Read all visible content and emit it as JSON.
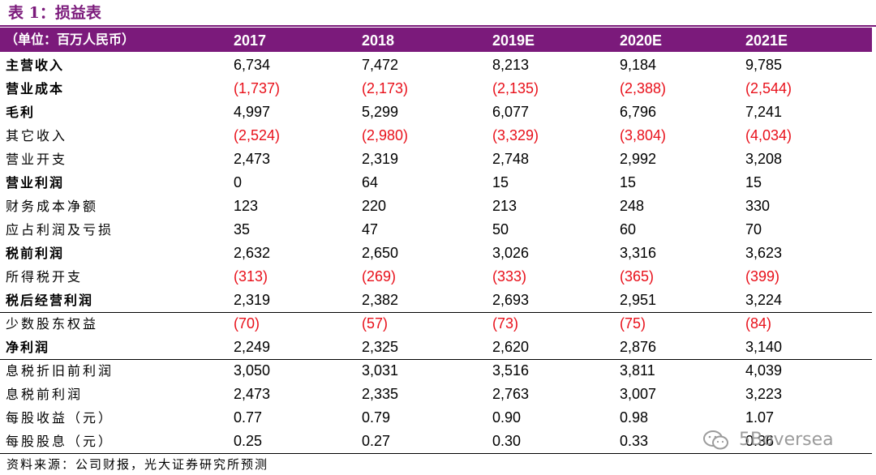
{
  "title": "表 1：损益表",
  "header": {
    "unit_label": "（单位：百万人民币）",
    "columns": [
      "2017",
      "2018",
      "2019E",
      "2020E",
      "2021E"
    ]
  },
  "rows": [
    {
      "label": "主营收入",
      "bold": true,
      "values": [
        "6,734",
        "7,472",
        "8,213",
        "9,184",
        "9,785"
      ]
    },
    {
      "label": "营业成本",
      "bold": true,
      "values": [
        "(1,737)",
        "(2,173)",
        "(2,135)",
        "(2,388)",
        "(2,544)"
      ]
    },
    {
      "label": "毛利",
      "bold": true,
      "values": [
        "4,997",
        "5,299",
        "6,077",
        "6,796",
        "7,241"
      ]
    },
    {
      "label": "其它收入",
      "bold": false,
      "values": [
        "(2,524)",
        "(2,980)",
        "(3,329)",
        "(3,804)",
        "(4,034)"
      ]
    },
    {
      "label": "营业开支",
      "bold": false,
      "values": [
        "2,473",
        "2,319",
        "2,748",
        "2,992",
        "3,208"
      ]
    },
    {
      "label": "营业利润",
      "bold": true,
      "values": [
        "0",
        "64",
        "15",
        "15",
        "15"
      ]
    },
    {
      "label": "财务成本净额",
      "bold": false,
      "values": [
        "123",
        "220",
        "213",
        "248",
        "330"
      ]
    },
    {
      "label": "应占利润及亏损",
      "bold": false,
      "values": [
        "35",
        "47",
        "50",
        "60",
        "70"
      ]
    },
    {
      "label": "税前利润",
      "bold": true,
      "values": [
        "2,632",
        "2,650",
        "3,026",
        "3,316",
        "3,623"
      ]
    },
    {
      "label": "所得税开支",
      "bold": false,
      "values": [
        "(313)",
        "(269)",
        "(333)",
        "(365)",
        "(399)"
      ]
    },
    {
      "label": "税后经营利润",
      "bold": true,
      "values": [
        "2,319",
        "2,382",
        "2,693",
        "2,951",
        "3,224"
      ]
    },
    {
      "label": "少数股东权益",
      "bold": false,
      "values": [
        "(70)",
        "(57)",
        "(73)",
        "(75)",
        "(84)"
      ]
    },
    {
      "label": "净利润",
      "bold": true,
      "values": [
        "2,249",
        "2,325",
        "2,620",
        "2,876",
        "3,140"
      ]
    },
    {
      "label": "息税折旧前利润",
      "bold": false,
      "values": [
        "3,050",
        "3,031",
        "3,516",
        "3,811",
        "4,039"
      ]
    },
    {
      "label": "息税前利润",
      "bold": false,
      "values": [
        "2,473",
        "2,335",
        "2,763",
        "3,007",
        "3,223"
      ]
    },
    {
      "label": "每股收益（元）",
      "bold": false,
      "values": [
        "0.77",
        "0.79",
        "0.90",
        "0.98",
        "1.07"
      ]
    },
    {
      "label": "每股股息（元）",
      "bold": false,
      "values": [
        "0.25",
        "0.27",
        "0.30",
        "0.33",
        "0.36"
      ]
    }
  ],
  "source": "资料来源：公司财报，光大证券研究所预测",
  "watermark": "5Boversea",
  "colors": {
    "header_bg": "#7b1a7b",
    "negative": "#e8101a"
  }
}
